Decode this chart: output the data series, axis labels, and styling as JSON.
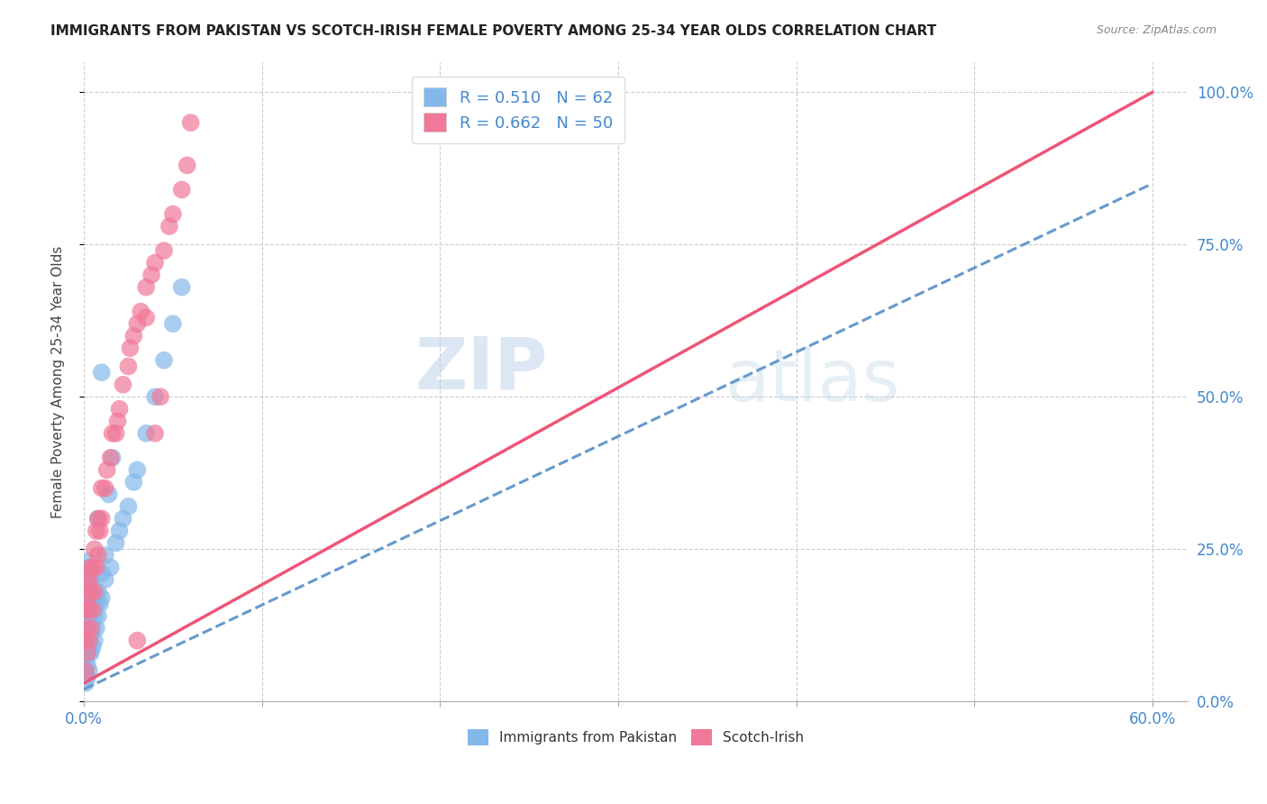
{
  "title": "IMMIGRANTS FROM PAKISTAN VS SCOTCH-IRISH FEMALE POVERTY AMONG 25-34 YEAR OLDS CORRELATION CHART",
  "source": "Source: ZipAtlas.com",
  "ylabel": "Female Poverty Among 25-34 Year Olds",
  "right_yticklabels": [
    "0.0%",
    "25.0%",
    "50.0%",
    "75.0%",
    "100.0%"
  ],
  "right_yticks": [
    0.0,
    0.25,
    0.5,
    0.75,
    1.0
  ],
  "pakistan_R": 0.51,
  "pakistan_N": 62,
  "scotch_R": 0.662,
  "scotch_N": 50,
  "pakistan_color": "#85b8ea",
  "scotch_color": "#f07898",
  "pakistan_line_color": "#6699cc",
  "scotch_line_color": "#ee5577",
  "watermark": "ZIPatlas",
  "xlim": [
    0.0,
    0.62
  ],
  "ylim": [
    0.0,
    1.05
  ],
  "xgrid_ticks": [
    0.0,
    0.1,
    0.2,
    0.3,
    0.4,
    0.5,
    0.6
  ],
  "ygrid_ticks": [
    0.0,
    0.25,
    0.5,
    0.75,
    1.0
  ],
  "pakistan_points_x": [
    0.001,
    0.001,
    0.001,
    0.001,
    0.001,
    0.001,
    0.001,
    0.001,
    0.001,
    0.001,
    0.002,
    0.002,
    0.002,
    0.002,
    0.002,
    0.002,
    0.002,
    0.002,
    0.002,
    0.003,
    0.003,
    0.003,
    0.003,
    0.003,
    0.003,
    0.003,
    0.004,
    0.004,
    0.004,
    0.004,
    0.004,
    0.005,
    0.005,
    0.005,
    0.006,
    0.006,
    0.006,
    0.007,
    0.007,
    0.008,
    0.008,
    0.009,
    0.01,
    0.01,
    0.012,
    0.012,
    0.015,
    0.018,
    0.02,
    0.022,
    0.025,
    0.028,
    0.03,
    0.035,
    0.04,
    0.045,
    0.05,
    0.055,
    0.01,
    0.014,
    0.008,
    0.016
  ],
  "pakistan_points_y": [
    0.03,
    0.05,
    0.07,
    0.08,
    0.1,
    0.12,
    0.13,
    0.15,
    0.17,
    0.19,
    0.04,
    0.06,
    0.09,
    0.11,
    0.14,
    0.16,
    0.18,
    0.21,
    0.23,
    0.05,
    0.08,
    0.1,
    0.13,
    0.16,
    0.19,
    0.22,
    0.08,
    0.11,
    0.14,
    0.17,
    0.2,
    0.09,
    0.12,
    0.16,
    0.1,
    0.14,
    0.18,
    0.12,
    0.16,
    0.14,
    0.18,
    0.16,
    0.17,
    0.21,
    0.2,
    0.24,
    0.22,
    0.26,
    0.28,
    0.3,
    0.32,
    0.36,
    0.38,
    0.44,
    0.5,
    0.56,
    0.62,
    0.68,
    0.54,
    0.34,
    0.3,
    0.4
  ],
  "scotch_points_x": [
    0.001,
    0.001,
    0.001,
    0.002,
    0.002,
    0.002,
    0.002,
    0.003,
    0.003,
    0.003,
    0.004,
    0.004,
    0.004,
    0.005,
    0.005,
    0.006,
    0.006,
    0.007,
    0.007,
    0.008,
    0.008,
    0.009,
    0.01,
    0.01,
    0.012,
    0.013,
    0.015,
    0.016,
    0.018,
    0.019,
    0.02,
    0.022,
    0.025,
    0.026,
    0.028,
    0.03,
    0.032,
    0.035,
    0.038,
    0.04,
    0.045,
    0.048,
    0.05,
    0.055,
    0.058,
    0.06,
    0.035,
    0.04,
    0.043,
    0.03
  ],
  "scotch_points_y": [
    0.05,
    0.1,
    0.15,
    0.08,
    0.12,
    0.17,
    0.2,
    0.1,
    0.15,
    0.2,
    0.12,
    0.18,
    0.22,
    0.15,
    0.22,
    0.18,
    0.25,
    0.22,
    0.28,
    0.24,
    0.3,
    0.28,
    0.3,
    0.35,
    0.35,
    0.38,
    0.4,
    0.44,
    0.44,
    0.46,
    0.48,
    0.52,
    0.55,
    0.58,
    0.6,
    0.62,
    0.64,
    0.68,
    0.7,
    0.72,
    0.74,
    0.78,
    0.8,
    0.84,
    0.88,
    0.95,
    0.63,
    0.44,
    0.5,
    0.1
  ],
  "pak_trend_x": [
    0.0,
    0.6
  ],
  "pak_trend_y": [
    0.02,
    0.85
  ],
  "sco_trend_x": [
    0.0,
    0.6
  ],
  "sco_trend_y": [
    0.03,
    1.0
  ]
}
